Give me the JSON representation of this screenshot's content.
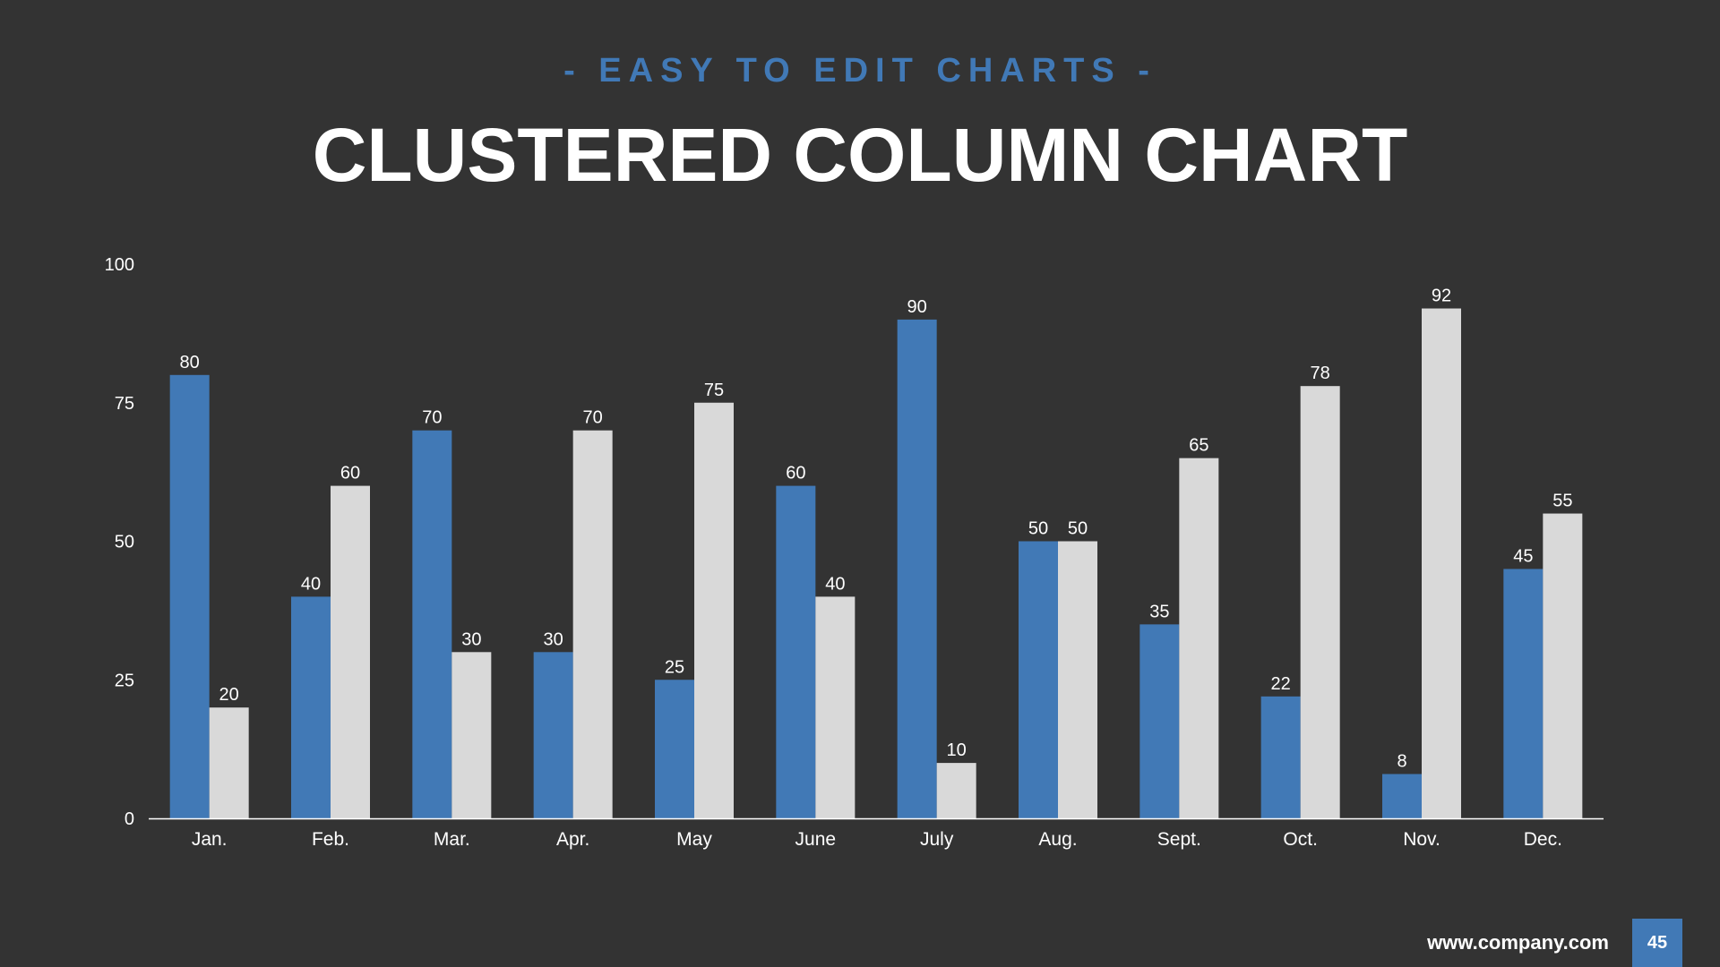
{
  "slide": {
    "subtitle": "- EASY TO EDIT CHARTS -",
    "title": "CLUSTERED COLUMN CHART",
    "footer_url": "www.company.com",
    "page_number": "45"
  },
  "colors": {
    "background": "#333333",
    "series_a": "#4179b6",
    "series_b": "#d9d9d9",
    "text": "#ffffff"
  },
  "chart_data": {
    "type": "bar",
    "categories": [
      "Jan.",
      "Feb.",
      "Mar.",
      "Apr.",
      "May",
      "June",
      "July",
      "Aug.",
      "Sept.",
      "Oct.",
      "Nov.",
      "Dec."
    ],
    "series": [
      {
        "values": [
          80,
          40,
          70,
          30,
          25,
          60,
          90,
          50,
          35,
          22,
          8,
          45
        ]
      },
      {
        "values": [
          20,
          60,
          30,
          70,
          75,
          40,
          10,
          50,
          65,
          78,
          92,
          55
        ]
      }
    ],
    "ylim": [
      0,
      100
    ],
    "yticks": [
      0,
      25,
      50,
      75,
      100
    ],
    "grid": false,
    "data_labels": true
  }
}
